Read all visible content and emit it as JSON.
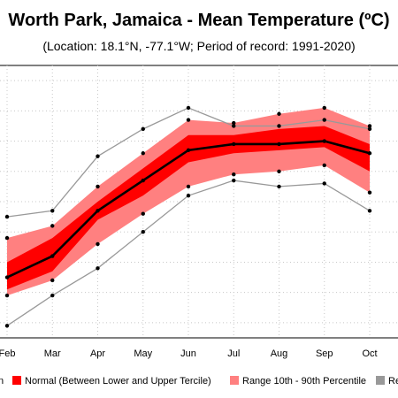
{
  "title": "Worth Park, Jamaica - Mean Temperature (ºC)",
  "subtitle": "(Location: 18.1°N, -77.1°W; Period of record: 1991-2020)",
  "colors": {
    "mean": "#000000",
    "tercile": "#ff0000",
    "percentile": "#ff8080",
    "record": "#999999"
  },
  "chart_data": {
    "type": "line",
    "categories": [
      "Feb",
      "Mar",
      "Apr",
      "May",
      "Jun",
      "Jul",
      "Aug",
      "Sep",
      "Oct"
    ],
    "ylim": [
      21.5,
      30.5
    ],
    "series": [
      {
        "name": "Mean",
        "values": [
          23.5,
          24.2,
          25.7,
          26.7,
          27.7,
          27.9,
          27.9,
          28.0,
          27.6
        ]
      },
      {
        "name": "Normal (Between Lower and Upper Tercile)",
        "lower": [
          23.1,
          23.7,
          25.4,
          26.2,
          27.3,
          27.6,
          27.7,
          27.8,
          27.0
        ],
        "upper": [
          24.0,
          24.8,
          26.0,
          27.1,
          28.2,
          28.2,
          28.4,
          28.5,
          27.9
        ]
      },
      {
        "name": "Range 10th - 90th Percentile",
        "lower": [
          22.9,
          23.4,
          24.6,
          25.6,
          26.5,
          26.9,
          27.0,
          27.2,
          26.3
        ],
        "upper": [
          24.8,
          25.2,
          26.5,
          27.6,
          28.7,
          28.6,
          28.9,
          29.1,
          28.5
        ]
      },
      {
        "name": "Record",
        "lower": [
          21.9,
          22.9,
          23.8,
          25.0,
          26.2,
          26.7,
          26.5,
          26.6,
          25.7
        ],
        "upper": [
          25.5,
          25.7,
          27.5,
          28.4,
          29.1,
          28.5,
          28.5,
          28.7,
          28.4
        ]
      }
    ],
    "legend": {
      "position": "bottom",
      "items": [
        "n",
        "Normal (Between Lower and Upper Tercile)",
        "Range 10th - 90th Percentile",
        "Re"
      ]
    },
    "grid": true
  }
}
